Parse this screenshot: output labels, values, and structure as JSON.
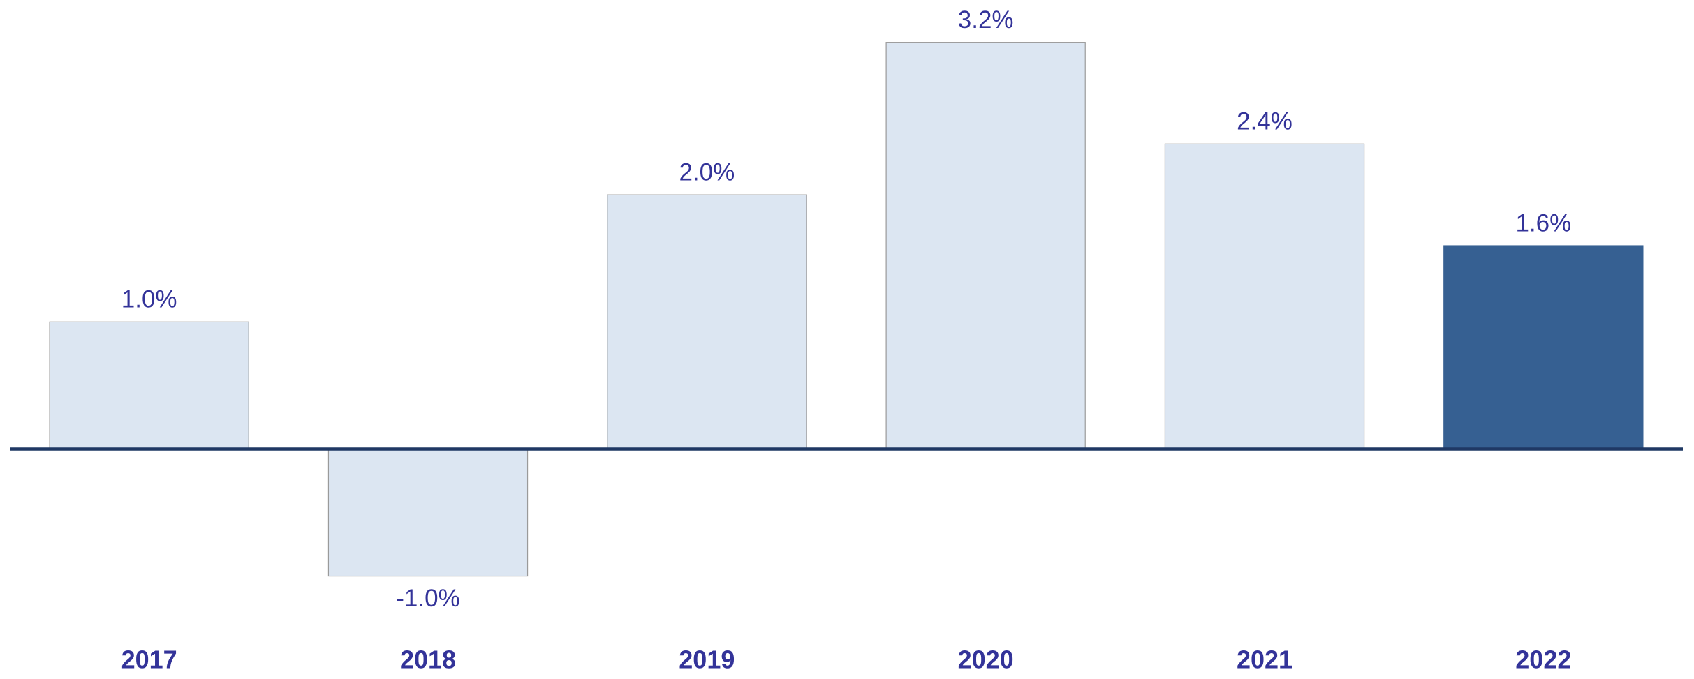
{
  "chart_data": {
    "type": "bar",
    "categories": [
      "2017",
      "2018",
      "2019",
      "2020",
      "2021",
      "2022"
    ],
    "values": [
      1.0,
      -1.0,
      2.0,
      3.2,
      2.4,
      1.6
    ],
    "value_labels": [
      "1.0%",
      "-1.0%",
      "2.0%",
      "3.2%",
      "2.4%",
      "1.6%"
    ],
    "colors": [
      "#dce6f2",
      "#dce6f2",
      "#dce6f2",
      "#dce6f2",
      "#dce6f2",
      "#366092"
    ],
    "ylim": [
      -1.2,
      3.5
    ]
  }
}
